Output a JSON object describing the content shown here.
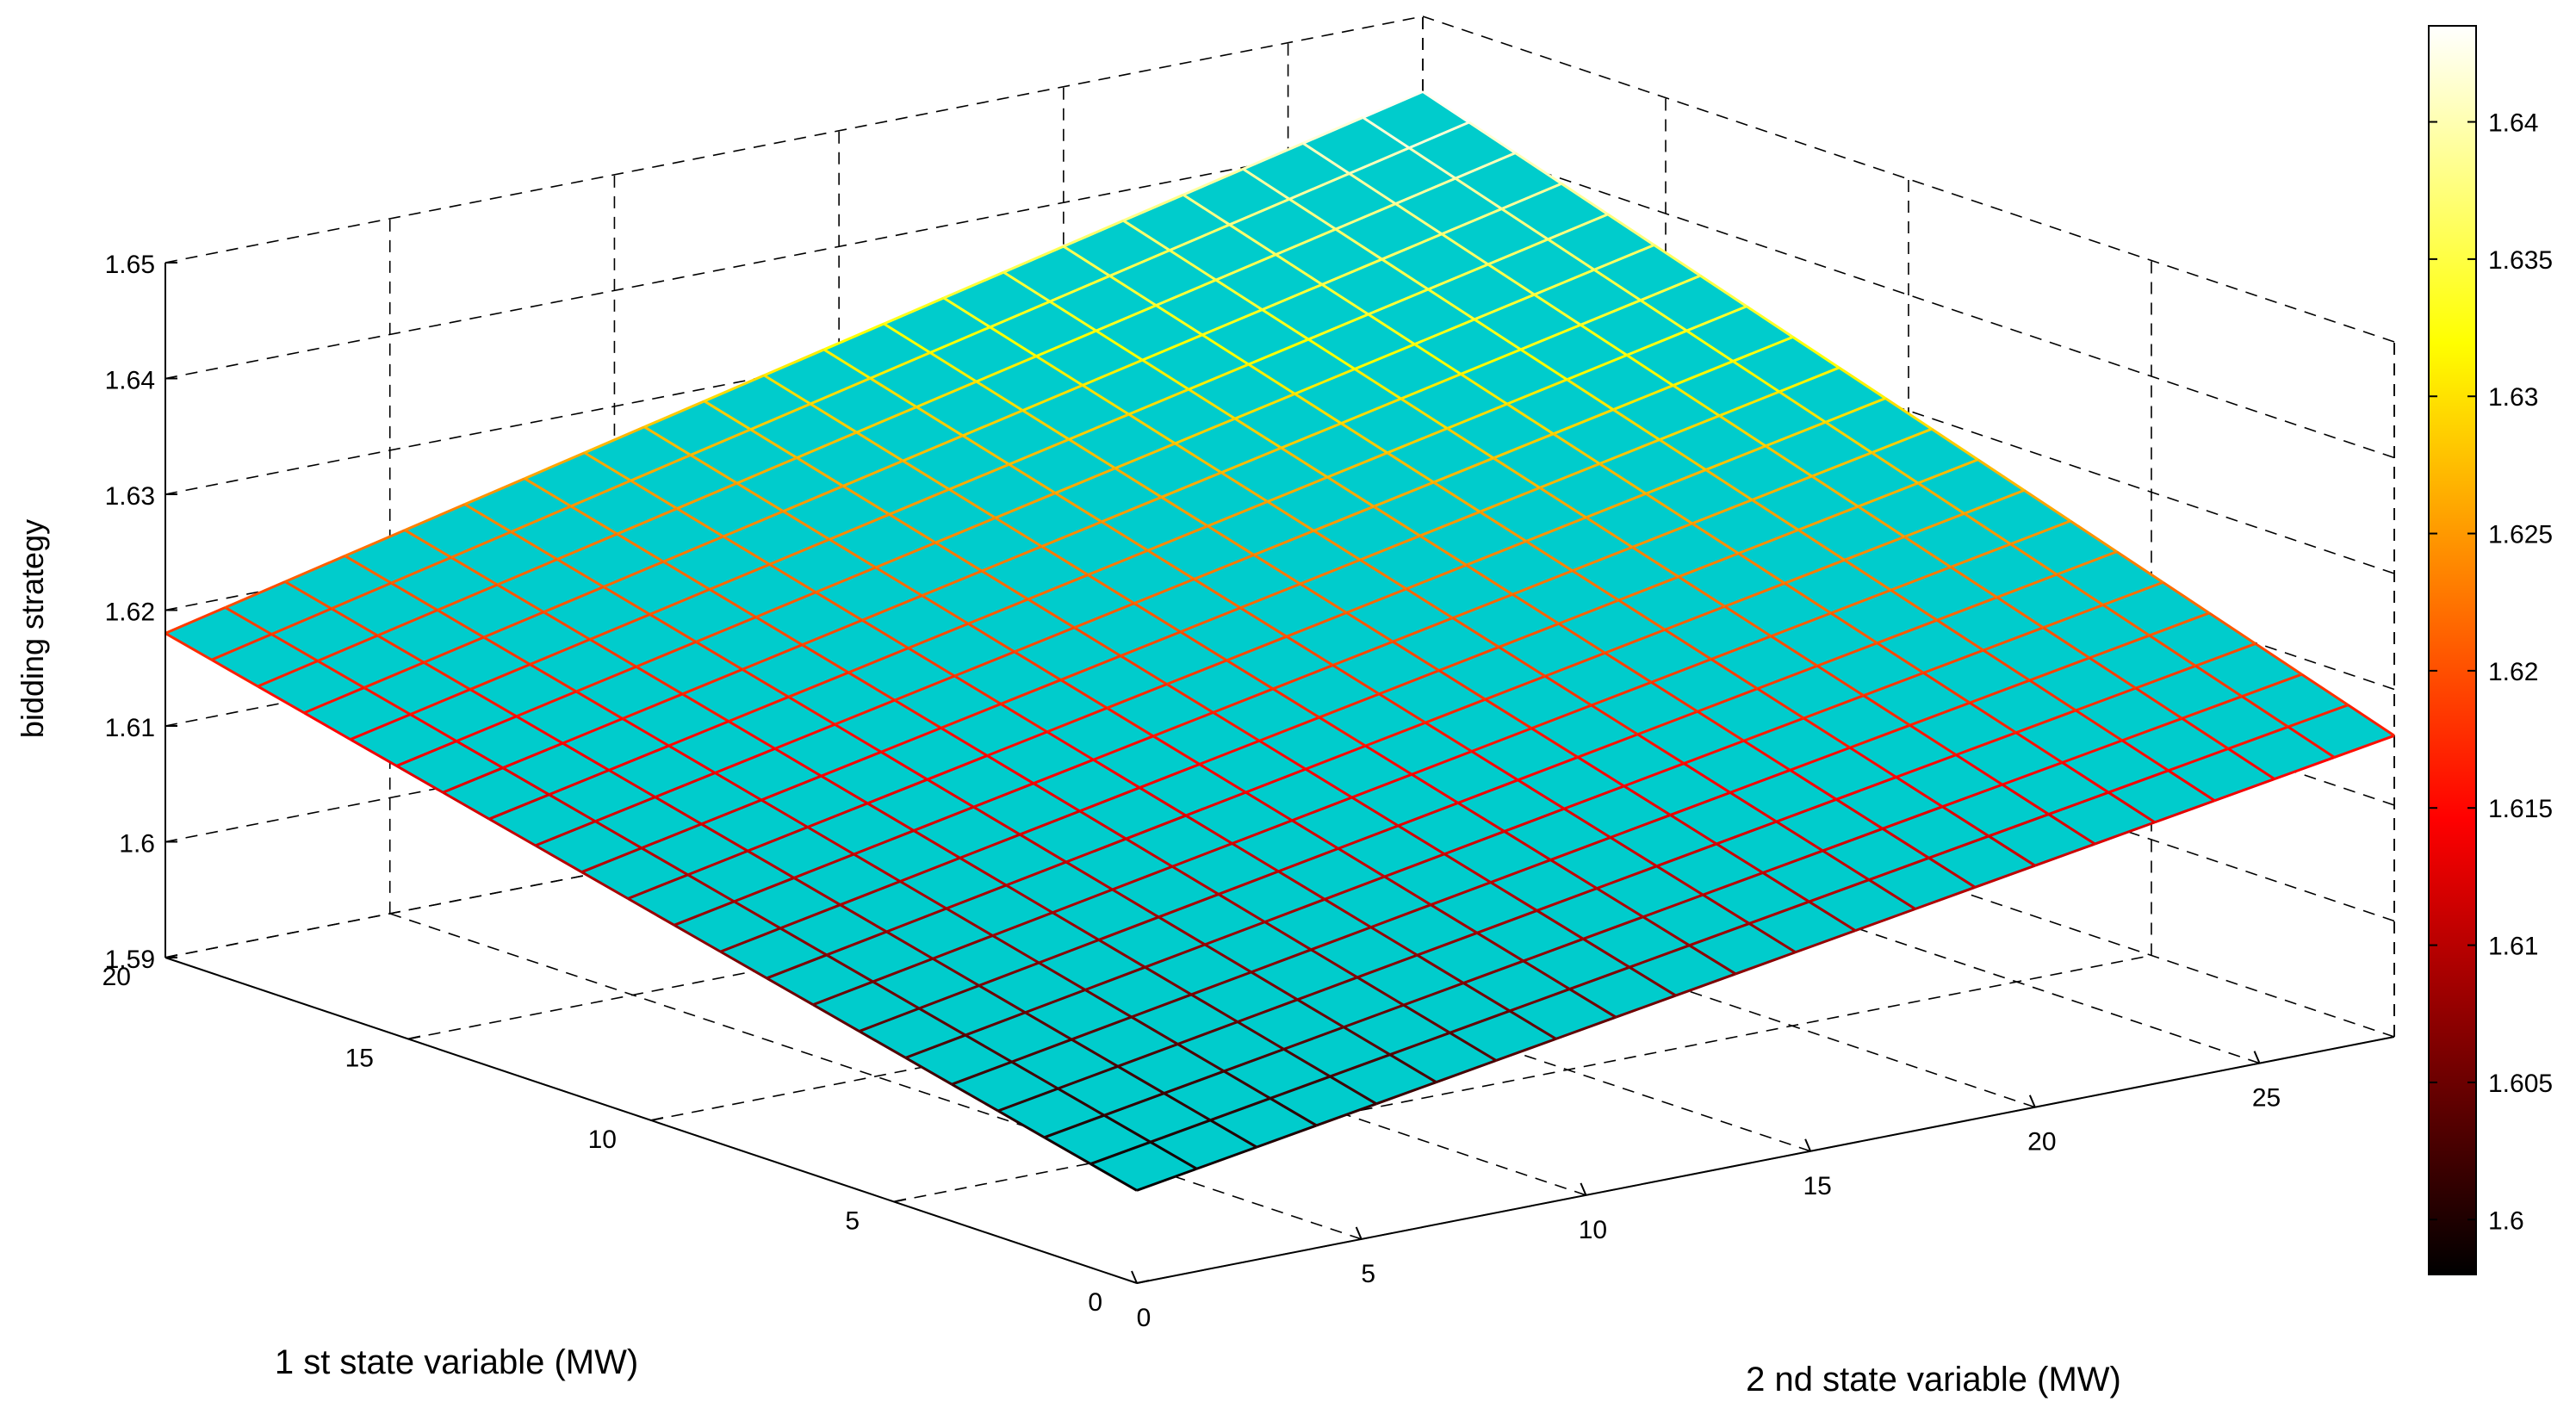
{
  "chart_data": {
    "type": "surface",
    "zlabel": "bidding strategy",
    "xlabel": "1 st state variable (MW)",
    "ylabel": "2 nd state variable (MW)",
    "x_range": [
      0,
      20
    ],
    "y_range": [
      0,
      28
    ],
    "z_range": [
      1.59,
      1.65
    ],
    "x_ticks": [
      0,
      5,
      10,
      15,
      20
    ],
    "y_ticks": [
      0,
      5,
      10,
      15,
      20,
      25
    ],
    "z_ticks": [
      1.59,
      1.6,
      1.61,
      1.62,
      1.63,
      1.64,
      1.65
    ],
    "x_tick_labels": [
      "0",
      "5",
      "10",
      "15",
      "20"
    ],
    "y_tick_labels": [
      "0",
      "5",
      "10",
      "15",
      "20",
      "25"
    ],
    "z_tick_labels": [
      "1.59",
      "1.6",
      "1.61",
      "1.62",
      "1.63",
      "1.64",
      "1.65"
    ],
    "surface_corners": {
      "x0_y0": 1.598,
      "x20_y0": 1.618,
      "x0_y28": 1.616,
      "x20_y28": 1.6435
    },
    "grid_lines": 22,
    "face_color": "#00CCCC",
    "edge_colormap": "hot",
    "grid": true,
    "colorbar": {
      "position": "right",
      "range": [
        1.598,
        1.6435
      ],
      "ticks": [
        1.6,
        1.605,
        1.61,
        1.615,
        1.62,
        1.625,
        1.63,
        1.635,
        1.64
      ],
      "tick_labels": [
        "1.6",
        "1.605",
        "1.61",
        "1.615",
        "1.62",
        "1.625",
        "1.63",
        "1.635",
        "1.64"
      ]
    }
  }
}
